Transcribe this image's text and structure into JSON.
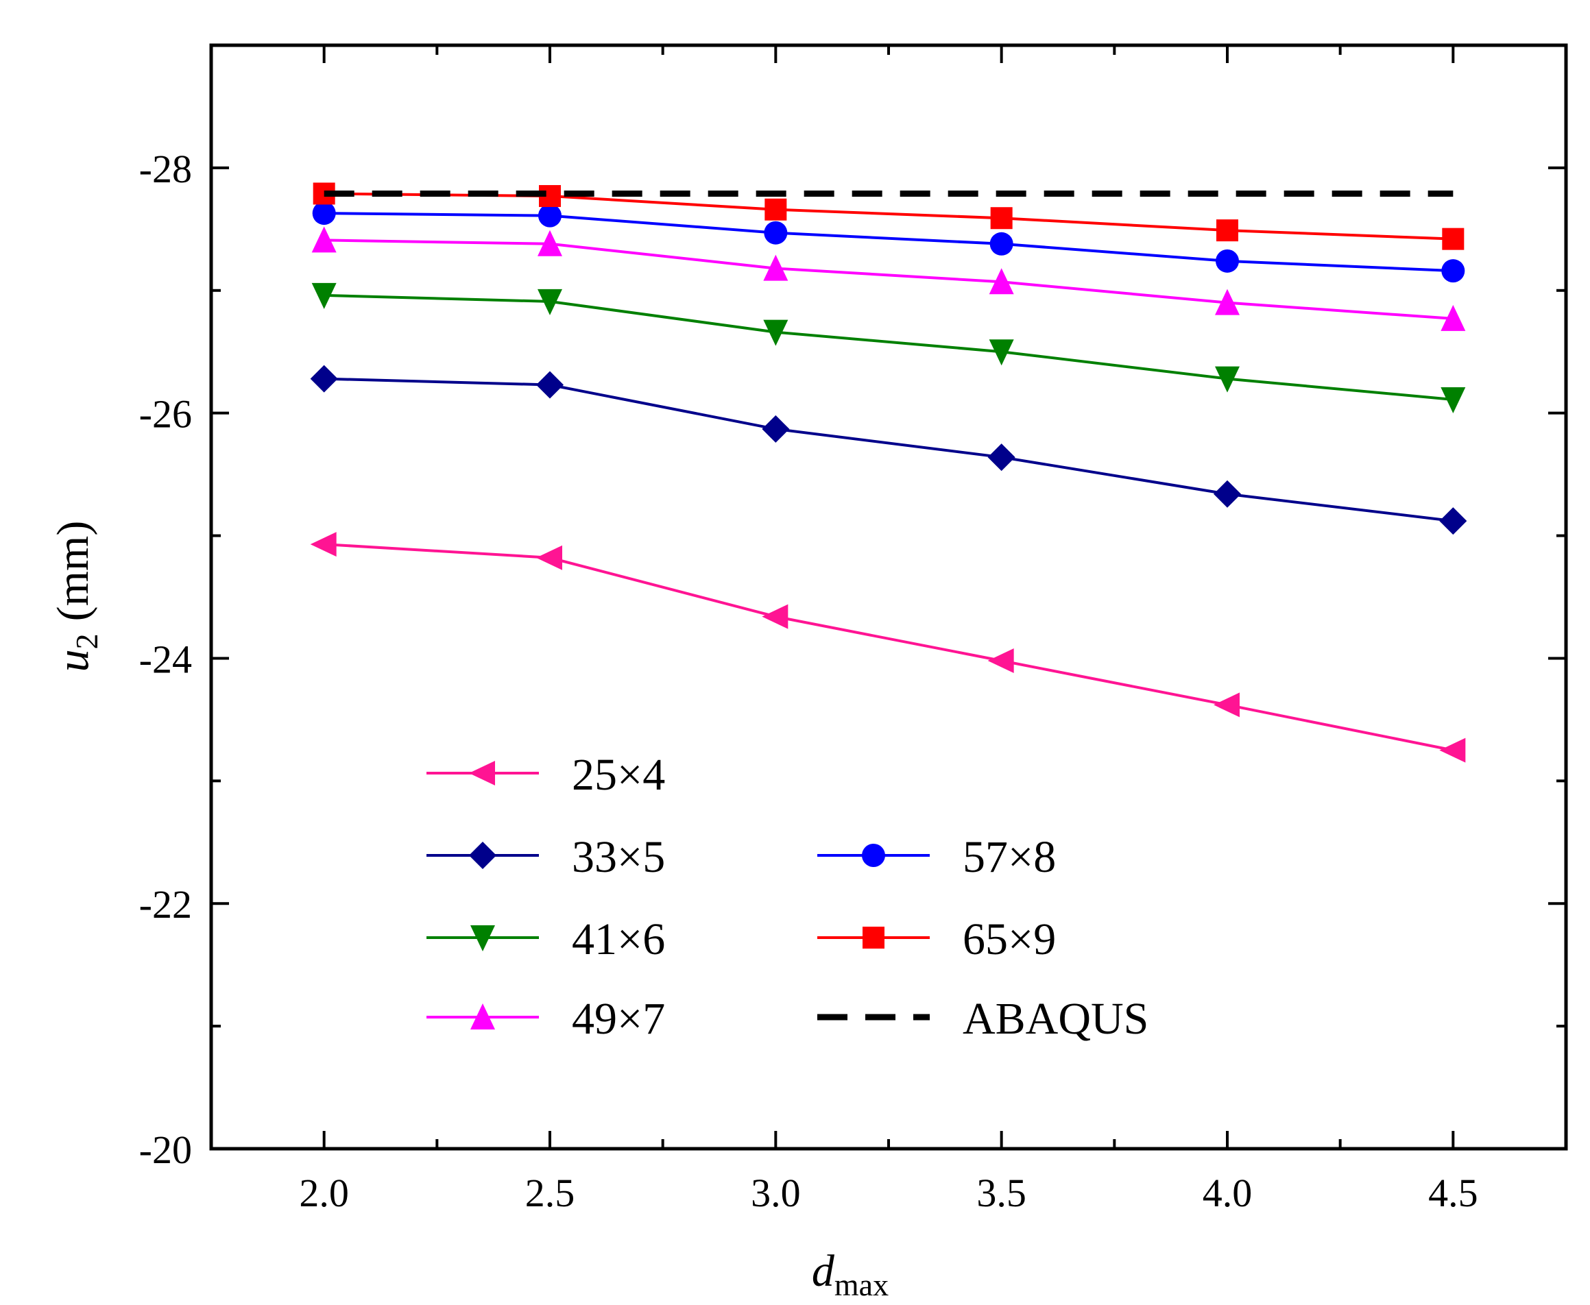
{
  "chart_data": {
    "type": "line",
    "title": "",
    "xlabel": {
      "main": "d",
      "sub": "max"
    },
    "ylabel": {
      "main": "u",
      "sub": "2",
      "units": "(mm)"
    },
    "x": [
      2.0,
      2.5,
      3.0,
      3.5,
      4.0,
      4.5
    ],
    "xlim": [
      1.75,
      4.75
    ],
    "ylim": [
      -20,
      -29
    ],
    "y_inverted": true,
    "x_ticks": [
      "2.0",
      "2.5",
      "3.0",
      "3.5",
      "4.0",
      "4.5"
    ],
    "x_tick_values": [
      2.0,
      2.5,
      3.0,
      3.5,
      4.0,
      4.5
    ],
    "x_minor_ticks": [
      2.25,
      2.75,
      3.25,
      3.75,
      4.25
    ],
    "y_ticks": [
      "-20",
      "-22",
      "-24",
      "-26",
      "-28"
    ],
    "y_tick_values": [
      -20,
      -22,
      -24,
      -26,
      -28
    ],
    "y_minor_ticks": [
      -21,
      -23,
      -25,
      -27
    ],
    "grid": false,
    "legend_position": "lower-center",
    "series": [
      {
        "name": "25×4",
        "color": "#ff1493",
        "marker": "triangle-left",
        "values": [
          -24.93,
          -24.82,
          -24.34,
          -23.98,
          -23.62,
          -23.25
        ]
      },
      {
        "name": "33×5",
        "color": "#00008b",
        "marker": "diamond",
        "values": [
          -26.28,
          -26.23,
          -25.87,
          -25.64,
          -25.34,
          -25.12
        ]
      },
      {
        "name": "41×6",
        "color": "#008000",
        "marker": "triangle-down",
        "values": [
          -26.96,
          -26.91,
          -26.66,
          -26.5,
          -26.28,
          -26.11
        ]
      },
      {
        "name": "49×7",
        "color": "#ff00ff",
        "marker": "triangle-up",
        "values": [
          -27.41,
          -27.38,
          -27.18,
          -27.07,
          -26.9,
          -26.77
        ]
      },
      {
        "name": "57×8",
        "color": "#0000ff",
        "marker": "circle",
        "values": [
          -27.63,
          -27.61,
          -27.47,
          -27.38,
          -27.24,
          -27.16
        ]
      },
      {
        "name": "65×9",
        "color": "#ff0000",
        "marker": "square",
        "values": [
          -27.79,
          -27.77,
          -27.66,
          -27.59,
          -27.49,
          -27.42
        ]
      },
      {
        "name": "ABAQUS",
        "color": "#000000",
        "marker": "none",
        "dashed": true,
        "values": [
          -27.79,
          -27.79,
          -27.79,
          -27.79,
          -27.79,
          -27.79
        ]
      }
    ]
  }
}
